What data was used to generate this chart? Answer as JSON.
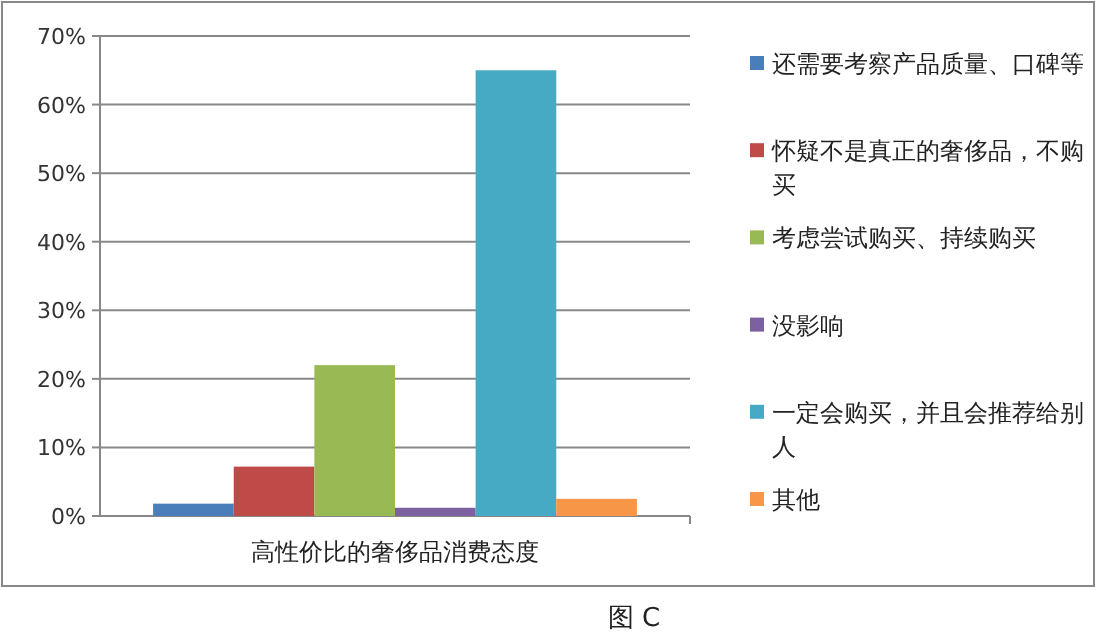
{
  "chart_data": {
    "type": "bar",
    "categories": [
      "高性价比的奢侈品消费态度"
    ],
    "series": [
      {
        "name": "还需要考察产品质量、口碑等",
        "color": "#4a7ebb",
        "values": [
          1.8
        ]
      },
      {
        "name": "怀疑不是真正的奢侈品，不购买",
        "color": "#be4b48",
        "values": [
          7.2
        ]
      },
      {
        "name": "考虑尝试购买、持续购买",
        "color": "#98b954",
        "values": [
          22
        ]
      },
      {
        "name": "没影响",
        "color": "#7d60a0",
        "values": [
          1.2
        ]
      },
      {
        "name": "一定会购买，并且会推荐给别人",
        "color": "#46aac5",
        "values": [
          65
        ]
      },
      {
        "name": "其他",
        "color": "#f79646",
        "values": [
          2.5
        ]
      }
    ],
    "ylim": [
      0,
      70
    ],
    "yticks": [
      {
        "value": 0,
        "label": "0%"
      },
      {
        "value": 10,
        "label": "10%"
      },
      {
        "value": 20,
        "label": "20%"
      },
      {
        "value": 30,
        "label": "30%"
      },
      {
        "value": 40,
        "label": "40%"
      },
      {
        "value": 50,
        "label": "50%"
      },
      {
        "value": 60,
        "label": "60%"
      },
      {
        "value": 70,
        "label": "70%"
      }
    ],
    "grid": "y",
    "legend": "right",
    "annotations": [
      "图 C"
    ]
  }
}
